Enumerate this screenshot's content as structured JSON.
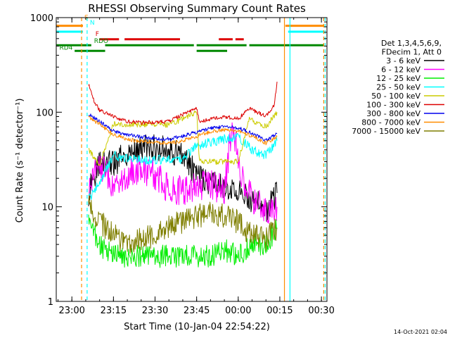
{
  "chart_data": {
    "type": "line",
    "title": "RHESSI Observing Summary Count Rates",
    "xlabel": "Start Time (10-Jan-04 22:54:22)",
    "ylabel": "Count Rate (s⁻¹ detector⁻¹)",
    "y_scale": "log",
    "ylim": [
      1,
      1000
    ],
    "xlim": [
      "22:54:22",
      "00:32:00"
    ],
    "x_ticks": [
      "23:00",
      "23:15",
      "23:30",
      "23:45",
      "00:00",
      "00:15",
      "00:30"
    ],
    "y_ticks": [
      "1",
      "10",
      "100",
      "1000"
    ],
    "grid": false,
    "legend_position": "right",
    "legend_header": [
      "Det 1,3,4,5,6,9,",
      "FDecim 1, Att 0"
    ],
    "series": [
      {
        "name": "3 - 6 keV",
        "color": "#000000",
        "points": [
          [
            "23:06",
            14
          ],
          [
            "23:10",
            30
          ],
          [
            "23:15",
            28
          ],
          [
            "23:20",
            38
          ],
          [
            "23:25",
            42
          ],
          [
            "23:30",
            42
          ],
          [
            "23:35",
            40
          ],
          [
            "23:40",
            35
          ],
          [
            "23:45",
            22
          ],
          [
            "23:50",
            18
          ],
          [
            "23:55",
            16
          ],
          [
            "00:00",
            15
          ],
          [
            "00:05",
            12
          ],
          [
            "00:10",
            9
          ],
          [
            "00:14",
            14
          ]
        ]
      },
      {
        "name": "6 - 12 keV",
        "color": "#ff00ff",
        "points": [
          [
            "23:06",
            14
          ],
          [
            "23:10",
            30
          ],
          [
            "23:15",
            16
          ],
          [
            "23:20",
            22
          ],
          [
            "23:25",
            25
          ],
          [
            "23:30",
            22
          ],
          [
            "23:35",
            15
          ],
          [
            "23:40",
            15
          ],
          [
            "23:45",
            16
          ],
          [
            "23:50",
            17
          ],
          [
            "23:55",
            15
          ],
          [
            "23:58",
            80
          ],
          [
            "00:01",
            20
          ],
          [
            "00:05",
            12
          ],
          [
            "00:10",
            9
          ],
          [
            "00:14",
            10
          ]
        ]
      },
      {
        "name": "12 - 25 keV",
        "color": "#00ee00",
        "points": [
          [
            "23:06",
            7
          ],
          [
            "23:10",
            4
          ],
          [
            "23:15",
            3
          ],
          [
            "23:20",
            3
          ],
          [
            "23:25",
            3
          ],
          [
            "23:30",
            3
          ],
          [
            "23:35",
            3
          ],
          [
            "23:40",
            3
          ],
          [
            "23:45",
            3
          ],
          [
            "23:50",
            3
          ],
          [
            "23:55",
            3.5
          ],
          [
            "00:00",
            3
          ],
          [
            "00:05",
            4
          ],
          [
            "00:10",
            4
          ],
          [
            "00:14",
            6
          ]
        ]
      },
      {
        "name": "25 - 50 keV",
        "color": "#00ffff",
        "points": [
          [
            "23:06",
            12
          ],
          [
            "23:10",
            18
          ],
          [
            "23:15",
            35
          ],
          [
            "23:20",
            32
          ],
          [
            "23:25",
            31
          ],
          [
            "23:30",
            31
          ],
          [
            "23:35",
            32
          ],
          [
            "23:40",
            32
          ],
          [
            "23:45",
            44
          ],
          [
            "23:50",
            48
          ],
          [
            "23:55",
            52
          ],
          [
            "00:00",
            55
          ],
          [
            "00:05",
            40
          ],
          [
            "00:10",
            35
          ],
          [
            "00:14",
            50
          ]
        ]
      },
      {
        "name": "50 - 100 keV",
        "color": "#cccc00",
        "points": [
          [
            "23:06",
            40
          ],
          [
            "23:10",
            28
          ],
          [
            "23:15",
            75
          ],
          [
            "23:20",
            74
          ],
          [
            "23:25",
            74
          ],
          [
            "23:30",
            74
          ],
          [
            "23:35",
            74
          ],
          [
            "23:40",
            85
          ],
          [
            "23:45",
            100
          ],
          [
            "23:46",
            30
          ],
          [
            "23:50",
            30
          ],
          [
            "23:55",
            30
          ],
          [
            "00:00",
            30
          ],
          [
            "00:04",
            85
          ],
          [
            "00:10",
            70
          ],
          [
            "00:14",
            100
          ]
        ]
      },
      {
        "name": "100 - 300 keV",
        "color": "#dd0000",
        "points": [
          [
            "23:06",
            200
          ],
          [
            "23:08",
            130
          ],
          [
            "23:10",
            105
          ],
          [
            "23:15",
            90
          ],
          [
            "23:20",
            80
          ],
          [
            "23:25",
            78
          ],
          [
            "23:30",
            78
          ],
          [
            "23:35",
            80
          ],
          [
            "23:40",
            95
          ],
          [
            "23:45",
            110
          ],
          [
            "23:46",
            78
          ],
          [
            "23:50",
            85
          ],
          [
            "23:55",
            90
          ],
          [
            "00:00",
            85
          ],
          [
            "00:04",
            110
          ],
          [
            "00:10",
            90
          ],
          [
            "00:13",
            120
          ],
          [
            "00:14",
            210
          ]
        ]
      },
      {
        "name": "300 - 800 keV",
        "color": "#0000ee",
        "points": [
          [
            "23:06",
            95
          ],
          [
            "23:10",
            80
          ],
          [
            "23:15",
            63
          ],
          [
            "23:20",
            58
          ],
          [
            "23:25",
            55
          ],
          [
            "23:30",
            53
          ],
          [
            "23:35",
            52
          ],
          [
            "23:40",
            56
          ],
          [
            "23:45",
            62
          ],
          [
            "23:50",
            68
          ],
          [
            "23:55",
            70
          ],
          [
            "00:00",
            68
          ],
          [
            "00:05",
            60
          ],
          [
            "00:10",
            50
          ],
          [
            "00:14",
            60
          ]
        ]
      },
      {
        "name": "800 - 7000 keV",
        "color": "#ff8c00",
        "points": [
          [
            "23:06",
            88
          ],
          [
            "23:10",
            75
          ],
          [
            "23:15",
            58
          ],
          [
            "23:20",
            52
          ],
          [
            "23:25",
            49
          ],
          [
            "23:30",
            48
          ],
          [
            "23:35",
            47
          ],
          [
            "23:40",
            50
          ],
          [
            "23:45",
            56
          ],
          [
            "23:50",
            62
          ],
          [
            "23:55",
            65
          ],
          [
            "00:00",
            63
          ],
          [
            "00:05",
            56
          ],
          [
            "00:10",
            47
          ],
          [
            "00:14",
            55
          ]
        ]
      },
      {
        "name": "7000 - 15000 keV",
        "color": "#7f7f00",
        "points": [
          [
            "23:06",
            10
          ],
          [
            "23:10",
            7
          ],
          [
            "23:15",
            5
          ],
          [
            "23:20",
            4
          ],
          [
            "23:25",
            4.5
          ],
          [
            "23:30",
            5
          ],
          [
            "23:35",
            6
          ],
          [
            "23:40",
            7
          ],
          [
            "23:45",
            8
          ],
          [
            "23:50",
            8.5
          ],
          [
            "23:55",
            8
          ],
          [
            "00:00",
            7
          ],
          [
            "00:05",
            5
          ],
          [
            "00:10",
            4.5
          ],
          [
            "00:14",
            6
          ]
        ]
      }
    ],
    "annotations": [
      {
        "text": "S",
        "color": "#ff8c00"
      },
      {
        "text": "N",
        "color": "#00ffff"
      },
      {
        "text": "F",
        "color": "#dd0000"
      },
      {
        "text": "RDO",
        "color": "#008800"
      },
      {
        "text": "RD4",
        "color": "#008800"
      }
    ],
    "flag_bars": [
      {
        "name": "S",
        "color": "#ff8c00",
        "level": 820,
        "intervals": [
          [
            "22:54:22",
            "23:04"
          ],
          [
            "00:17",
            "00:31"
          ]
        ]
      },
      {
        "name": "N",
        "color": "#00ffff",
        "level": 710,
        "intervals": [
          [
            "22:54:22",
            "23:04"
          ],
          [
            "00:18",
            "00:31"
          ]
        ]
      },
      {
        "name": "F",
        "color": "#dd0000",
        "level": 590,
        "intervals": [
          [
            "23:10",
            "23:17"
          ],
          [
            "23:19",
            "23:39"
          ],
          [
            "23:53",
            "23:58"
          ],
          [
            "23:59",
            "00:02"
          ]
        ]
      },
      {
        "name": "RDO",
        "color": "#008800",
        "level": 510,
        "intervals": [
          [
            "22:54:22",
            "23:07"
          ],
          [
            "23:12",
            "23:44"
          ],
          [
            "23:45",
            "00:03"
          ],
          [
            "00:04",
            "00:31"
          ]
        ]
      },
      {
        "name": "RD4",
        "color": "#008800",
        "level": 445,
        "intervals": [
          [
            "23:01",
            "23:12"
          ],
          [
            "23:45",
            "23:56"
          ]
        ]
      }
    ],
    "vertical_markers": [
      {
        "time": "23:03:30",
        "color": "#ff8c00",
        "style": "dashed"
      },
      {
        "time": "23:05:30",
        "color": "#00ffff",
        "style": "dashed"
      },
      {
        "time": "00:16:40",
        "color": "#ff8c00",
        "style": "solid"
      },
      {
        "time": "00:18:40",
        "color": "#00ffff",
        "style": "solid"
      },
      {
        "time": "00:30:50",
        "color": "#ff8c00",
        "style": "dashed"
      },
      {
        "time": "00:31:20",
        "color": "#00ffff",
        "style": "dashed"
      }
    ]
  },
  "footer": {
    "timestamp": "14-Oct-2021 02:04"
  }
}
